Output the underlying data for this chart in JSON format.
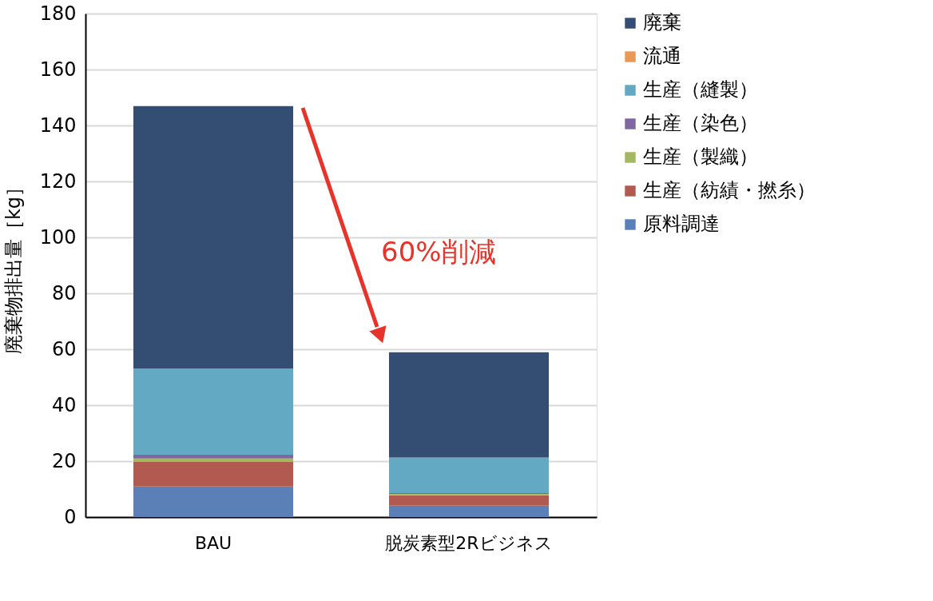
{
  "chart_data": {
    "type": "bar",
    "stacked": true,
    "ylabel": "廃棄物排出量［kg］",
    "categories": [
      "BAU",
      "脱炭素型2Rビジネス"
    ],
    "series": [
      {
        "name": "原料調達",
        "color": "#5b80b8",
        "values": [
          10.9,
          4.1
        ]
      },
      {
        "name": "生産（紡績・撚糸）",
        "color": "#b35a50",
        "values": [
          8.8,
          3.7
        ]
      },
      {
        "name": "生産（製織）",
        "color": "#a3b861",
        "values": [
          1.2,
          0.5
        ]
      },
      {
        "name": "生産（染色）",
        "color": "#7f67a1",
        "values": [
          1.4,
          0.3
        ]
      },
      {
        "name": "生産（縫製）",
        "color": "#63a9c4",
        "values": [
          30.8,
          12.7
        ]
      },
      {
        "name": "流通",
        "color": "#e99955",
        "values": [
          null,
          null
        ]
      },
      {
        "name": "廃棄",
        "color": "#334e72",
        "values": [
          93.8,
          37.6
        ]
      }
    ],
    "ylim": [
      0,
      180
    ],
    "yticks": [
      0,
      20,
      40,
      60,
      80,
      100,
      120,
      140,
      160,
      180
    ],
    "grid": "y",
    "legend": "right",
    "annotations": [
      "60%削減"
    ]
  }
}
